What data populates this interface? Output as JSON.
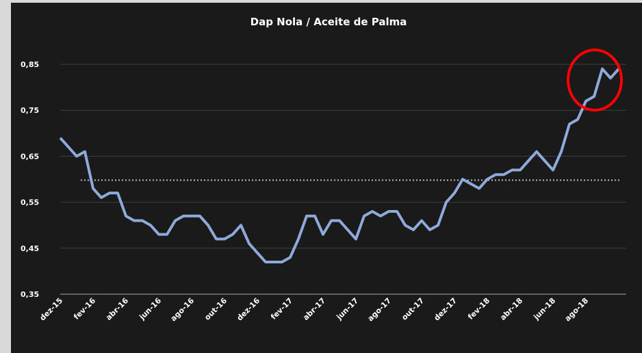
{
  "chart_data": {
    "type": "line",
    "title": "Dap Nola / Aceite de Palma",
    "categories": [
      "dez-15",
      null,
      null,
      null,
      "fev-16",
      null,
      null,
      null,
      "abr-16",
      null,
      null,
      null,
      "jun-16",
      null,
      null,
      null,
      "ago-16",
      null,
      null,
      null,
      "out-16",
      null,
      null,
      null,
      "dez-16",
      null,
      null,
      null,
      "fev-17",
      null,
      null,
      null,
      "abr-17",
      null,
      null,
      null,
      "jun-17",
      null,
      null,
      null,
      "ago-17",
      null,
      null,
      null,
      "out-17",
      null,
      null,
      null,
      "dez-17",
      null,
      null,
      null,
      "fev-18",
      null,
      null,
      null,
      "abr-18",
      null,
      null,
      null,
      "jun-18",
      null,
      null,
      null,
      "ago-18",
      null,
      null,
      null,
      null
    ],
    "series": [
      {
        "name": "Dap Nola / Aceite de Palma",
        "color": "#8eaadb",
        "values": [
          0.69,
          0.67,
          0.65,
          0.66,
          0.58,
          0.56,
          0.57,
          0.57,
          0.52,
          0.51,
          0.51,
          0.5,
          0.48,
          0.48,
          0.51,
          0.52,
          0.52,
          0.52,
          0.5,
          0.47,
          0.47,
          0.48,
          0.5,
          0.46,
          0.44,
          0.42,
          0.42,
          0.42,
          0.43,
          0.47,
          0.52,
          0.52,
          0.48,
          0.51,
          0.51,
          0.49,
          0.47,
          0.52,
          0.53,
          0.52,
          0.53,
          0.53,
          0.5,
          0.49,
          0.51,
          0.49,
          0.5,
          0.55,
          0.57,
          0.6,
          0.59,
          0.58,
          0.6,
          0.61,
          0.61,
          0.62,
          0.62,
          0.64,
          0.66,
          0.64,
          0.62,
          0.66,
          0.72,
          0.73,
          0.77,
          0.78,
          0.84,
          0.82,
          0.84
        ]
      }
    ],
    "reference_line": {
      "value": 0.598,
      "color": "#bfbfbf"
    },
    "ylim": [
      0.35,
      0.85
    ],
    "yticks": [
      {
        "value": 0.35,
        "label": "0,35"
      },
      {
        "value": 0.45,
        "label": "0,45"
      },
      {
        "value": 0.55,
        "label": "0,55"
      },
      {
        "value": 0.65,
        "label": "0,65"
      },
      {
        "value": 0.75,
        "label": "0,75"
      },
      {
        "value": 0.85,
        "label": "0,85"
      }
    ],
    "grid": true
  }
}
